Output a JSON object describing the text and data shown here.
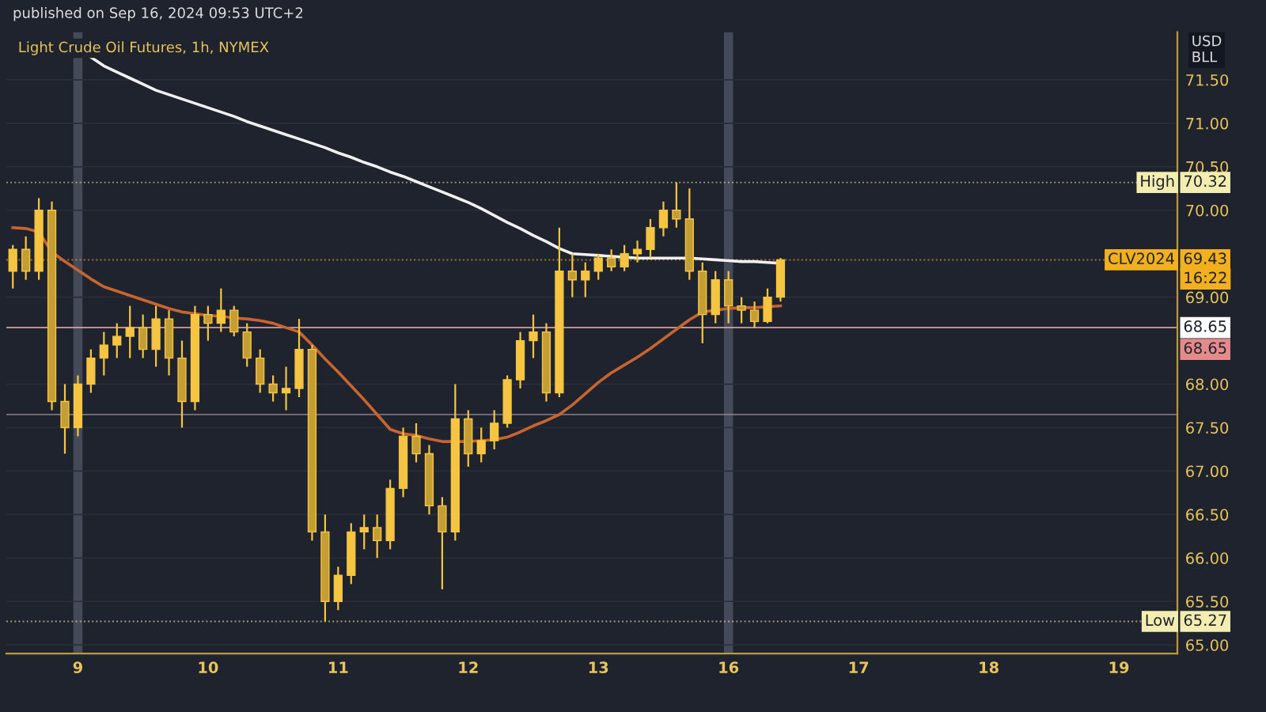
{
  "chart_data": {
    "type": "candlestick",
    "title": "Light Crude Oil Futures, 1h, NYMEX",
    "ylabel": "USD\nBLL",
    "annotations": [
      "published on Sep 16, 2024 09:53 UTC+2",
      {
        "text": "High",
        "y": 70.32
      },
      {
        "text": "CLV2024",
        "y": 69.43
      },
      {
        "text": "16:22",
        "y": 69.43
      },
      {
        "text": "Low",
        "y": 65.27
      }
    ],
    "color": "#f5c542",
    "categories": [
      null,
      null,
      null,
      null,
      null,
      "9",
      null,
      null,
      null,
      null,
      null,
      null,
      null,
      null,
      null,
      "10",
      null,
      null,
      null,
      null,
      null,
      null,
      null,
      null,
      null,
      "11",
      null,
      null,
      null,
      null,
      null,
      null,
      null,
      null,
      null,
      "12",
      null,
      null,
      null,
      null,
      null,
      null,
      null,
      null,
      null,
      "13",
      null,
      null,
      null,
      null,
      null,
      null,
      null,
      null,
      null,
      "16",
      null,
      null,
      null,
      null,
      null,
      null,
      null,
      null,
      null,
      "17",
      null,
      null,
      null,
      null,
      null,
      null,
      null,
      null,
      null,
      "18",
      null,
      null,
      null,
      null,
      null,
      null,
      null,
      null,
      null,
      "19",
      null,
      null,
      null,
      null
    ],
    "ohlc": [
      [
        69.3,
        69.6,
        69.1,
        69.55
      ],
      [
        69.55,
        69.7,
        69.2,
        69.3
      ],
      [
        69.3,
        70.14,
        69.2,
        70.0
      ],
      [
        70.0,
        70.1,
        67.7,
        67.8
      ],
      [
        67.8,
        68.0,
        67.2,
        67.5
      ],
      [
        67.5,
        68.1,
        67.4,
        68.0
      ],
      [
        68.0,
        68.4,
        67.9,
        68.3
      ],
      [
        68.3,
        68.6,
        68.1,
        68.45
      ],
      [
        68.45,
        68.7,
        68.3,
        68.55
      ],
      [
        68.55,
        68.9,
        68.3,
        68.65
      ],
      [
        68.65,
        68.8,
        68.3,
        68.4
      ],
      [
        68.4,
        68.9,
        68.2,
        68.75
      ],
      [
        68.75,
        68.85,
        68.1,
        68.3
      ],
      [
        68.3,
        68.5,
        67.5,
        67.8
      ],
      [
        67.8,
        68.9,
        67.7,
        68.8
      ],
      [
        68.8,
        68.9,
        68.5,
        68.7
      ],
      [
        68.7,
        69.1,
        68.6,
        68.85
      ],
      [
        68.85,
        68.9,
        68.55,
        68.6
      ],
      [
        68.6,
        68.7,
        68.2,
        68.3
      ],
      [
        68.3,
        68.4,
        67.9,
        68.0
      ],
      [
        68.0,
        68.1,
        67.8,
        67.9
      ],
      [
        67.9,
        68.2,
        67.7,
        67.95
      ],
      [
        67.95,
        68.75,
        67.85,
        68.4
      ],
      [
        68.4,
        68.45,
        66.2,
        66.3
      ],
      [
        66.3,
        66.5,
        65.27,
        65.5
      ],
      [
        65.5,
        65.9,
        65.4,
        65.8
      ],
      [
        65.8,
        66.4,
        65.7,
        66.3
      ],
      [
        66.3,
        66.5,
        66.1,
        66.35
      ],
      [
        66.35,
        66.5,
        66.0,
        66.2
      ],
      [
        66.2,
        66.9,
        66.1,
        66.8
      ],
      [
        66.8,
        67.5,
        66.7,
        67.4
      ],
      [
        67.4,
        67.55,
        67.1,
        67.2
      ],
      [
        67.2,
        67.3,
        66.5,
        66.6
      ],
      [
        66.6,
        66.7,
        65.64,
        66.3
      ],
      [
        66.3,
        68.0,
        66.2,
        67.6
      ],
      [
        67.6,
        67.7,
        67.05,
        67.2
      ],
      [
        67.2,
        67.5,
        67.1,
        67.35
      ],
      [
        67.35,
        67.7,
        67.25,
        67.55
      ],
      [
        67.55,
        68.1,
        67.5,
        68.05
      ],
      [
        68.05,
        68.6,
        67.95,
        68.5
      ],
      [
        68.5,
        68.8,
        68.3,
        68.6
      ],
      [
        68.6,
        68.7,
        67.8,
        67.9
      ],
      [
        67.9,
        69.8,
        67.85,
        69.3
      ],
      [
        69.3,
        69.5,
        69.0,
        69.2
      ],
      [
        69.2,
        69.4,
        69.0,
        69.3
      ],
      [
        69.3,
        69.5,
        69.2,
        69.45
      ],
      [
        69.45,
        69.55,
        69.3,
        69.35
      ],
      [
        69.35,
        69.6,
        69.3,
        69.5
      ],
      [
        69.5,
        69.65,
        69.4,
        69.55
      ],
      [
        69.55,
        69.9,
        69.45,
        69.8
      ],
      [
        69.8,
        70.1,
        69.7,
        70.0
      ],
      [
        70.0,
        70.32,
        69.8,
        69.9
      ],
      [
        69.9,
        70.25,
        69.2,
        69.3
      ],
      [
        69.3,
        69.4,
        68.47,
        68.8
      ],
      [
        68.8,
        69.3,
        68.7,
        69.2
      ],
      [
        69.2,
        69.3,
        68.7,
        68.9
      ],
      [
        68.9,
        69.0,
        68.7,
        68.85
      ],
      [
        68.85,
        68.95,
        68.65,
        68.72
      ],
      [
        68.72,
        69.1,
        68.7,
        69.0
      ],
      [
        69.0,
        69.45,
        68.95,
        69.43
      ],
      null,
      null,
      null,
      null,
      null,
      null,
      null,
      null,
      null,
      null,
      null,
      null,
      null,
      null,
      null,
      null,
      null,
      null,
      null,
      null,
      null,
      null,
      null,
      null,
      null,
      null,
      null,
      null,
      null,
      null
    ],
    "series": [
      {
        "type": "line",
        "color": "#f0f0f0",
        "values": [
          null,
          null,
          null,
          null,
          null,
          null,
          71.76,
          71.66,
          71.59,
          71.52,
          71.45,
          71.38,
          71.33,
          71.28,
          71.23,
          71.18,
          71.13,
          71.08,
          71.02,
          70.97,
          70.92,
          70.87,
          70.82,
          70.77,
          70.72,
          70.66,
          70.61,
          70.55,
          70.5,
          70.44,
          70.39,
          70.33,
          70.27,
          70.21,
          70.15,
          70.09,
          70.02,
          69.94,
          69.86,
          69.79,
          69.71,
          69.64,
          69.56,
          69.5,
          69.49,
          69.48,
          69.47,
          69.46,
          69.45,
          69.45,
          69.45,
          69.45,
          69.45,
          69.44,
          69.43,
          69.42,
          69.41,
          69.41,
          69.4,
          69.39,
          null,
          null,
          null,
          null,
          null,
          null,
          null,
          null,
          null,
          null,
          null,
          null,
          null,
          null,
          null,
          null,
          null,
          null,
          null,
          null,
          null,
          null,
          null,
          null,
          null,
          null,
          null,
          null,
          null,
          null
        ]
      },
      {
        "type": "line",
        "color": "#c8642e",
        "values": [
          69.8,
          69.79,
          69.75,
          69.52,
          69.41,
          69.31,
          69.21,
          69.12,
          69.07,
          69.02,
          68.97,
          68.92,
          68.87,
          68.83,
          68.81,
          68.79,
          68.78,
          68.76,
          68.75,
          68.73,
          68.7,
          68.65,
          68.6,
          68.45,
          68.29,
          68.14,
          67.98,
          67.82,
          67.65,
          67.48,
          67.43,
          67.41,
          67.37,
          67.34,
          67.34,
          67.34,
          67.35,
          67.36,
          67.39,
          67.45,
          67.52,
          67.58,
          67.65,
          67.76,
          67.89,
          68.02,
          68.13,
          68.22,
          68.31,
          68.41,
          68.52,
          68.63,
          68.74,
          68.83,
          68.85,
          68.87,
          68.88,
          68.88,
          68.89,
          68.9,
          null,
          null,
          null,
          null,
          null,
          null,
          null,
          null,
          null,
          null,
          null,
          null,
          null,
          null,
          null,
          null,
          null,
          null,
          null,
          null,
          null,
          null,
          null,
          null,
          null,
          null,
          null,
          null,
          null,
          null
        ]
      }
    ],
    "ref_lines": [
      {
        "axis": "y",
        "value": 70.32,
        "label": "70.32",
        "color": "#f3eeb0",
        "line_style": "dotted"
      },
      {
        "axis": "y",
        "value": 69.43,
        "label": "69.43",
        "color": "#f2b01e",
        "line_style": "dotted"
      },
      {
        "axis": "y",
        "value": 68.65,
        "label": "68.65",
        "color": "#ffffff",
        "line_style": "solid"
      },
      {
        "axis": "y",
        "value": 68.65,
        "label": "68.65",
        "color": "#e58a8a",
        "line_style": "solid"
      },
      {
        "axis": "y",
        "value": 67.65,
        "label": null,
        "color": "#a8969e",
        "line_style": "solid"
      },
      {
        "axis": "y",
        "value": 65.27,
        "label": "65.27",
        "color": "#f3eeb0",
        "line_style": "dotted"
      }
    ],
    "bands": [
      {
        "axis": "x",
        "from": "9",
        "to": "9",
        "label": null,
        "color": "#454a59"
      },
      {
        "axis": "x",
        "from": "16",
        "to": "16",
        "label": null,
        "color": "#454a59"
      }
    ],
    "ylim": [
      64.9,
      72.05
    ],
    "yticks": [
      {
        "value": 65,
        "label": "65.00"
      },
      {
        "value": 65.5,
        "label": "65.50"
      },
      {
        "value": 66,
        "label": "66.00"
      },
      {
        "value": 66.5,
        "label": "66.50"
      },
      {
        "value": 67,
        "label": "67.00"
      },
      {
        "value": 67.5,
        "label": "67.50"
      },
      {
        "value": 68,
        "label": "68.00"
      },
      {
        "value": 69,
        "label": "69.00"
      },
      {
        "value": 70,
        "label": "70.00"
      },
      {
        "value": 70.5,
        "label": "70.50"
      },
      {
        "value": 71,
        "label": "71.00"
      },
      {
        "value": 71.5,
        "label": "71.50"
      }
    ],
    "grid": "y"
  }
}
